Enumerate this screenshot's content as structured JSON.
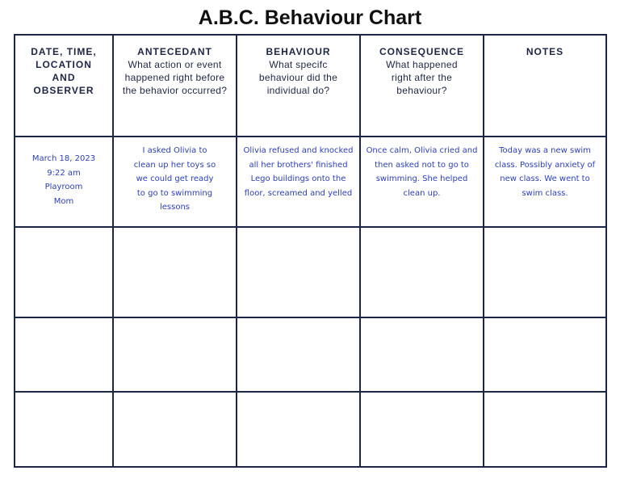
{
  "title": "A.B.C. Behaviour Chart",
  "table": {
    "headers": [
      {
        "label": "DATE, TIME, LOCATION AND OBSERVER"
      },
      {
        "label": "ANTECEDANT",
        "question": "What action or event happened right before the behavior occurred?"
      },
      {
        "label": "BEHAVIOUR",
        "question": "What specifc behaviour did the individual do?"
      },
      {
        "label": "CONSEQUENCE",
        "question": "What happened right after the behaviour?"
      },
      {
        "label": "NOTES"
      }
    ],
    "rows": [
      [
        [
          "March 18, 2023",
          "9:22 am",
          "Playroom",
          "Mom"
        ],
        "I asked Olivia to clean up her toys so we could get ready to go to swimming lessons",
        "Olivia refused and knocked all her brothers' finished Lego buildings onto the floor, screamed and yelled",
        "Once calm, Olivia cried and then asked not to go to swimming. She helped clean up.",
        "Today was a new swim class. Possibly anxiety of new class. We went to swim class."
      ]
    ]
  }
}
